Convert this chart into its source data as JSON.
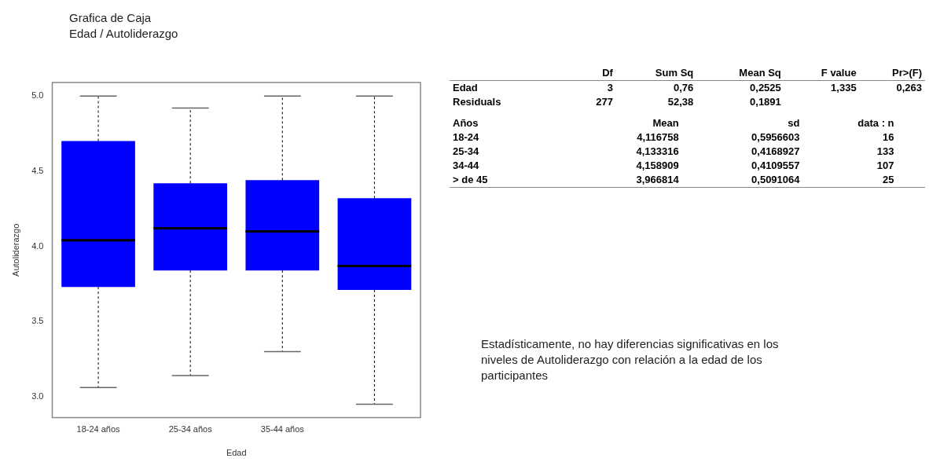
{
  "chart_data": [
    {
      "type": "box",
      "title": "Grafica de Caja",
      "subtitle": "Edad / Autoliderazgo",
      "xlabel": "Edad",
      "ylabel": "Autoliderazgo",
      "categories": [
        "18-24 años",
        "25-34 años",
        "35-44 años",
        null
      ],
      "color": "#0000ff",
      "boxes": [
        {
          "low": 3.06,
          "q1": 3.73,
          "median": 4.04,
          "q3": 4.7,
          "high": 5.0
        },
        {
          "low": 3.14,
          "q1": 3.84,
          "median": 4.12,
          "q3": 4.42,
          "high": 4.92
        },
        {
          "low": 3.3,
          "q1": 3.84,
          "median": 4.1,
          "q3": 4.44,
          "high": 5.0
        },
        {
          "low": 2.95,
          "q1": 3.71,
          "median": 3.87,
          "q3": 4.32,
          "high": 5.0
        }
      ],
      "ylim": [
        2.86,
        5.09
      ],
      "yticks": [
        {
          "value": 3,
          "label": "3.0"
        },
        {
          "value": 3.5,
          "label": "3.5"
        },
        {
          "value": 4,
          "label": "4.0"
        },
        {
          "value": 4.5,
          "label": "4.5"
        },
        {
          "value": 5,
          "label": "5.0"
        }
      ],
      "grid": false,
      "legend": false
    },
    {
      "type": "other",
      "categories": [
        "Df",
        "Sum Sq",
        "Mean Sq",
        "F value",
        "Pr>(F)"
      ],
      "y_categories": [
        "Edad",
        "Residuals"
      ],
      "cell_labels": [
        [
          "3",
          "0,76",
          "0,2525",
          "1,335",
          "0,263"
        ],
        [
          "277",
          "52,38",
          "0,1891",
          null,
          null
        ]
      ]
    },
    {
      "type": "other",
      "ylabel": "Años",
      "categories": [
        "Mean",
        "sd",
        "data : n"
      ],
      "y_categories": [
        "18-24",
        "25-34",
        "34-44",
        "> de 45"
      ],
      "cell_labels": [
        [
          "4,116758",
          "0,5956603",
          "16"
        ],
        [
          "4,133316",
          "0,4168927",
          "133"
        ],
        [
          "4,158909",
          "0,4109557",
          "107"
        ],
        [
          "3,966814",
          "0,5091064",
          "25"
        ]
      ]
    },
    {
      "type": "other",
      "annotations": [
        "Estadísticamente, no hay diferencias significativas en los niveles de Autoliderazgo con relación a la edad de los participantes"
      ]
    }
  ]
}
